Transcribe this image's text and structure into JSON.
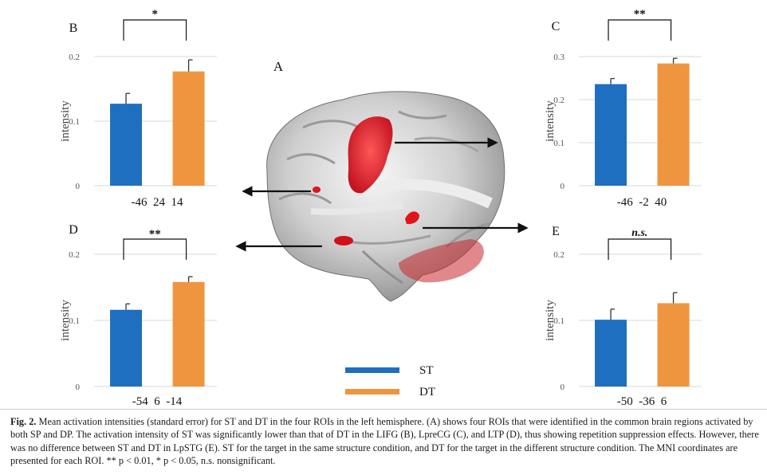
{
  "figure": {
    "brain_label": "A",
    "legend": [
      {
        "name": "ST",
        "color": "#1f6fc0"
      },
      {
        "name": "DT",
        "color": "#f0953f"
      }
    ],
    "colors": {
      "ST": "#1f6fc0",
      "DT": "#f0953f",
      "activation": "#e0141a",
      "arrow": "#111111"
    },
    "brain_icon": "brain-3d-render"
  },
  "caption": {
    "label": "Fig. 2.",
    "text": "Mean activation intensities (standard error) for ST and DT in the four ROIs in the left hemisphere. (A) shows four ROIs that were identified in the common brain regions activated by both SP and DP. The activation intensity of ST was significantly lower than that of DT in the LIFG (B), LpreCG (C), and LTP (D), thus showing repetition suppression effects. However, there was no difference between ST and DT in LpSTG (E). ST for the target in the same structure condition, and DT for the target in the different structure condition. The MNI coordinates are presented for each ROI. ** p < 0.01, * p < 0.05, n.s. nonsignificant."
  },
  "chart_data": [
    {
      "panel": "B",
      "type": "bar",
      "categories": [
        "ST",
        "DT"
      ],
      "values": [
        0.127,
        0.177
      ],
      "errors": [
        0.016,
        0.018
      ],
      "ylabel": "intensity",
      "ylim": [
        0,
        0.2
      ],
      "yticks": [
        "0",
        "0.1",
        "0.2"
      ],
      "coordinates": "-46  24  14",
      "significance": "*",
      "grid": true
    },
    {
      "panel": "C",
      "type": "bar",
      "categories": [
        "ST",
        "DT"
      ],
      "values": [
        0.236,
        0.284
      ],
      "errors": [
        0.013,
        0.012
      ],
      "ylabel": "intensity",
      "ylim": [
        0,
        0.3
      ],
      "yticks": [
        "0",
        "0.1",
        "0.2",
        "0.3"
      ],
      "coordinates": "-46  -2  40",
      "significance": "**",
      "grid": true
    },
    {
      "panel": "D",
      "type": "bar",
      "categories": [
        "ST",
        "DT"
      ],
      "values": [
        0.116,
        0.158
      ],
      "errors": [
        0.009,
        0.008
      ],
      "ylabel": "intensity",
      "ylim": [
        0,
        0.2
      ],
      "yticks": [
        "0",
        "0.1",
        "0.2"
      ],
      "coordinates": "-54  6  -14",
      "significance": "**",
      "grid": true
    },
    {
      "panel": "E",
      "type": "bar",
      "categories": [
        "ST",
        "DT"
      ],
      "values": [
        0.101,
        0.126
      ],
      "errors": [
        0.016,
        0.016
      ],
      "ylabel": "intensity",
      "ylim": [
        0,
        0.2
      ],
      "yticks": [
        "0",
        "0.1",
        "0.2"
      ],
      "coordinates": "-50  -36  6",
      "significance": "n.s.",
      "grid": true
    }
  ]
}
